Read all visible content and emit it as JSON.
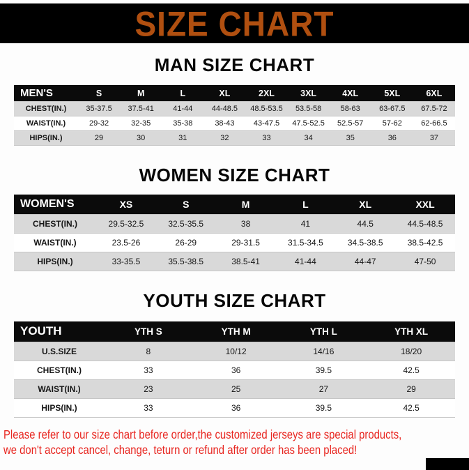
{
  "banner": {
    "title": "SIZE CHART"
  },
  "colors": {
    "banner-bg": "#000000",
    "title-color": "#b04f10",
    "header-bg": "#0b0b0b",
    "shaded-row": "#d9d9d9",
    "note-color": "#e8251f"
  },
  "sections": [
    {
      "heading": "MAN SIZE CHART",
      "table": {
        "header": [
          "MEN'S",
          "S",
          "M",
          "L",
          "XL",
          "2XL",
          "3XL",
          "4XL",
          "5XL",
          "6XL"
        ],
        "rows": [
          [
            "CHEST(IN.)",
            "35-37.5",
            "37.5-41",
            "41-44",
            "44-48.5",
            "48.5-53.5",
            "53.5-58",
            "58-63",
            "63-67.5",
            "67.5-72"
          ],
          [
            "WAIST(IN.)",
            "29-32",
            "32-35",
            "35-38",
            "38-43",
            "43-47.5",
            "47.5-52.5",
            "52.5-57",
            "57-62",
            "62-66.5"
          ],
          [
            "HIPS(IN.)",
            "29",
            "30",
            "31",
            "32",
            "33",
            "34",
            "35",
            "36",
            "37"
          ]
        ]
      }
    },
    {
      "heading": "WOMEN SIZE CHART",
      "table": {
        "header": [
          "WOMEN'S",
          "XS",
          "S",
          "M",
          "L",
          "XL",
          "XXL"
        ],
        "rows": [
          [
            "CHEST(IN.)",
            "29.5-32.5",
            "32.5-35.5",
            "38",
            "41",
            "44.5",
            "44.5-48.5"
          ],
          [
            "WAIST(IN.)",
            "23.5-26",
            "26-29",
            "29-31.5",
            "31.5-34.5",
            "34.5-38.5",
            "38.5-42.5"
          ],
          [
            "HIPS(IN.)",
            "33-35.5",
            "35.5-38.5",
            "38.5-41",
            "41-44",
            "44-47",
            "47-50"
          ]
        ]
      }
    },
    {
      "heading": "YOUTH SIZE CHART",
      "table": {
        "header": [
          "YOUTH",
          "YTH S",
          "YTH M",
          "YTH L",
          "YTH XL"
        ],
        "rows": [
          [
            "U.S.SIZE",
            "8",
            "10/12",
            "14/16",
            "18/20"
          ],
          [
            "CHEST(IN.)",
            "33",
            "36",
            "39.5",
            "42.5"
          ],
          [
            "WAIST(IN.)",
            "23",
            "25",
            "27",
            "29"
          ],
          [
            "HIPS(IN.)",
            "33",
            "36",
            "39.5",
            "42.5"
          ]
        ]
      }
    }
  ],
  "footer": {
    "line1": "Please refer to our size chart before order,the customized jerseys are special products,",
    "line2": "we don't accept cancel, change, teturn or refund after order has been placed!"
  }
}
